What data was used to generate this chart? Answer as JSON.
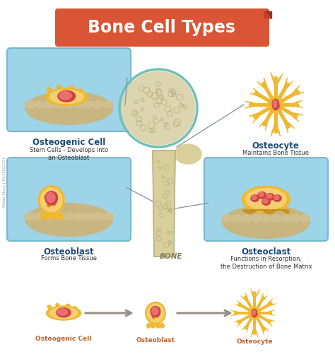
{
  "title": "Bone Cell Types",
  "title_bg_color": "#d95535",
  "title_text_color": "#ffffff",
  "bg_color": "#ffffff",
  "panel_bg_color": "#9dd4e8",
  "panel_border_color": "#7ab8cc",
  "sand_color": "#c8b580",
  "sand_dark": "#b8a070",
  "cell_body_color": "#f0b830",
  "cell_body_light": "#f5d070",
  "cell_nucleus_color": "#d04040",
  "cell_nucleus_light": "#e87070",
  "bone_color": "#e8dfc0",
  "bone_fill": "#ddd5b0",
  "teal_border": "#70c0b8",
  "bone_shaft_color": "#d8cf9a",
  "labels": {
    "osteogenic": "Osteogenic Cell",
    "osteogenic_sub": "Stem Cells - Develops into\nan Osteoblast",
    "osteoblast": "Osteoblast",
    "osteoblast_sub": "Forms Bone Tissue",
    "osteocyte": "Osteocyte",
    "osteocyte_sub": "Maintains Bone Tissue",
    "osteoclast": "Osteoclast",
    "osteoclast_sub": "Functions in Resorption,\nthe Destruction of Bone Matrix",
    "bone": "BONE"
  },
  "label_color": "#1a4a7a",
  "sub_label_color": "#333333",
  "bottom_labels": [
    "Osteogenic Cell",
    "Osteoblast",
    "Osteocyte"
  ],
  "arrow_color": "#999080",
  "watermark": "Adobe Stock | #211652371"
}
